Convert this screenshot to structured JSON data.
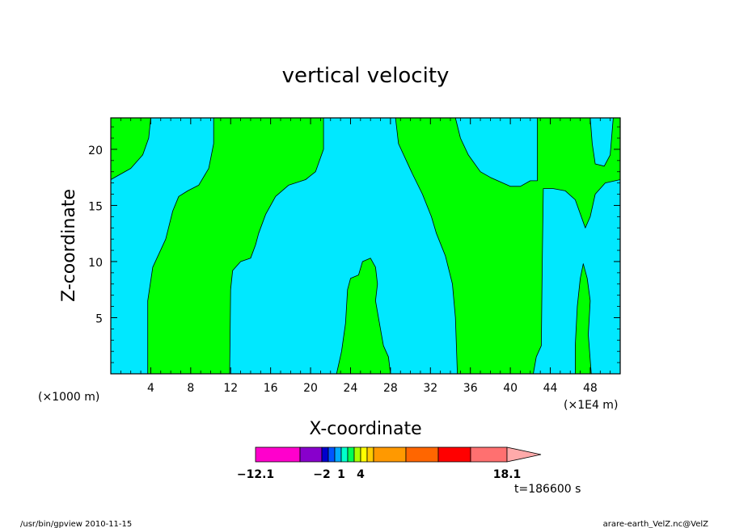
{
  "chart_data": {
    "type": "contour",
    "title": "vertical velocity",
    "xlabel": "X-coordinate",
    "ylabel": "Z-coordinate",
    "x_unit_left": "(×1000 m)",
    "x_unit_right": "(×1E4 m)",
    "xlim": [
      0,
      51
    ],
    "ylim": [
      0,
      22.8
    ],
    "x_ticks": [
      "4",
      "8",
      "12",
      "16",
      "20",
      "24",
      "28",
      "32",
      "36",
      "40",
      "44",
      "48"
    ],
    "y_ticks": [
      "5",
      "10",
      "15",
      "20"
    ],
    "colors": {
      "negative": "#00e8ff",
      "positive": "#00ff00"
    },
    "positive_regions": [
      [
        [
          0,
          22.8
        ],
        [
          4,
          22.8
        ],
        [
          3.8,
          21
        ],
        [
          3.2,
          19.5
        ],
        [
          2,
          18.3
        ],
        [
          0,
          17.3
        ]
      ],
      [
        [
          3.7,
          0
        ],
        [
          3.7,
          6.5
        ],
        [
          4.2,
          9.5
        ],
        [
          5.5,
          12
        ],
        [
          6.2,
          14.5
        ],
        [
          6.8,
          15.8
        ],
        [
          7.7,
          16.3
        ],
        [
          8.8,
          16.8
        ],
        [
          9.8,
          18.3
        ],
        [
          10.3,
          20.5
        ],
        [
          10.3,
          22.8
        ],
        [
          21.3,
          22.8
        ],
        [
          21.3,
          20
        ],
        [
          20.5,
          18
        ],
        [
          19.5,
          17.3
        ],
        [
          17.8,
          16.8
        ],
        [
          16.5,
          15.8
        ],
        [
          15.5,
          14.2
        ],
        [
          14.8,
          12.5
        ],
        [
          14.5,
          11.5
        ],
        [
          14,
          10.3
        ],
        [
          13,
          10
        ],
        [
          12.2,
          9.2
        ],
        [
          12,
          7.5
        ],
        [
          11.9,
          0
        ]
      ],
      [
        [
          22.6,
          0
        ],
        [
          23.1,
          2
        ],
        [
          23.5,
          4.5
        ],
        [
          23.7,
          7.5
        ],
        [
          24,
          8.5
        ],
        [
          24.8,
          8.8
        ],
        [
          25.2,
          10
        ],
        [
          26,
          10.3
        ],
        [
          26.5,
          9.5
        ],
        [
          26.7,
          8
        ],
        [
          26.5,
          6.5
        ],
        [
          27,
          4
        ],
        [
          27.3,
          2.5
        ],
        [
          27.8,
          1.5
        ],
        [
          28,
          0
        ]
      ],
      [
        [
          28.5,
          22.8
        ],
        [
          28.8,
          20.5
        ],
        [
          30.2,
          17.8
        ],
        [
          31.2,
          16
        ],
        [
          32.1,
          14
        ],
        [
          32.6,
          12.5
        ],
        [
          33.5,
          10.5
        ],
        [
          34.2,
          8
        ],
        [
          34.5,
          5
        ],
        [
          34.7,
          0
        ],
        [
          42.3,
          0
        ],
        [
          42.6,
          1.5
        ],
        [
          43.1,
          2.5
        ],
        [
          43.2,
          10
        ],
        [
          43.3,
          16.5
        ],
        [
          44.3,
          16.5
        ],
        [
          45.5,
          16.3
        ],
        [
          46.5,
          15.5
        ],
        [
          47.5,
          13
        ],
        [
          48,
          14
        ],
        [
          48.5,
          16
        ],
        [
          49.5,
          17
        ],
        [
          51,
          17.3
        ],
        [
          51,
          22.8
        ],
        [
          50.3,
          22.8
        ],
        [
          50,
          19.5
        ],
        [
          49.4,
          18.5
        ],
        [
          48.5,
          18.7
        ],
        [
          48.2,
          20.5
        ],
        [
          48,
          22.8
        ],
        [
          42.7,
          22.8
        ],
        [
          42.7,
          17.2
        ],
        [
          42,
          17.2
        ],
        [
          41,
          16.7
        ],
        [
          40,
          16.7
        ],
        [
          38,
          17.5
        ],
        [
          37,
          18
        ],
        [
          35.8,
          19.5
        ],
        [
          35,
          21
        ],
        [
          34.5,
          22.8
        ]
      ],
      [
        [
          46.5,
          0
        ],
        [
          46.5,
          2.5
        ],
        [
          46.7,
          6
        ],
        [
          47,
          8.5
        ],
        [
          47.3,
          9.8
        ],
        [
          47.7,
          8.5
        ],
        [
          48,
          6.5
        ],
        [
          47.8,
          3.5
        ],
        [
          48.1,
          0
        ]
      ]
    ],
    "colorbar": {
      "colors": [
        "#ff00cc",
        "#8800cc",
        "#0000cc",
        "#0055ff",
        "#00aaff",
        "#00ffcc",
        "#00ff55",
        "#aaff00",
        "#ffff00",
        "#ffcc00",
        "#ff9900",
        "#ff6600",
        "#ff0000",
        "#ff7070",
        "#ffaaaa"
      ],
      "labels": [
        "−12.1",
        "−2",
        "1",
        "4",
        "18.1"
      ]
    },
    "time_label": "t=186600 s"
  },
  "footer": {
    "left": "/usr/bin/gpview   2010-11-15",
    "right": "arare-earth_VelZ.nc@VelZ"
  }
}
